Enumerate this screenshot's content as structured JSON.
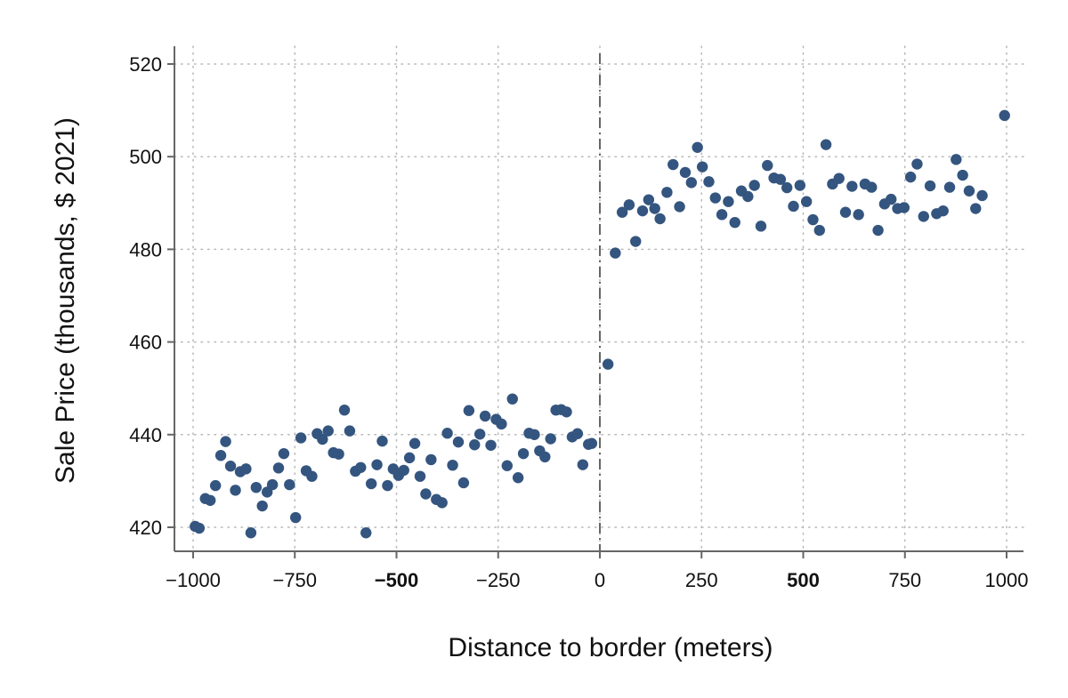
{
  "chart_data": {
    "type": "scatter",
    "title": "",
    "xlabel": "Distance to border (meters)",
    "ylabel": "Sale Price (thousands, $ 2021)",
    "xlim": [
      -1000,
      1000
    ],
    "ylim": [
      420,
      520
    ],
    "x_ticks": [
      -1000,
      -750,
      -500,
      -250,
      0,
      250,
      500,
      750,
      1000
    ],
    "x_tick_labels": [
      "−1000",
      "−750",
      "−500",
      "−250",
      "0",
      "250",
      "500",
      "750",
      "1000"
    ],
    "x_tick_bold": [
      "−500",
      "500"
    ],
    "y_ticks": [
      420,
      440,
      460,
      480,
      500,
      520
    ],
    "y_tick_labels": [
      "420",
      "440",
      "460",
      "480",
      "500",
      "520"
    ],
    "grid": true,
    "grid_style": "dotted",
    "cutoff_line": {
      "x": 0,
      "style": "dash-dot"
    },
    "colors": {
      "points": "#34557f",
      "cutoff": "#666666",
      "grid": "#b8b8b8",
      "axis": "#666666"
    },
    "series": [
      {
        "points": [
          [
            -995,
            420.2
          ],
          [
            -985,
            419.8
          ],
          [
            -970,
            426.2
          ],
          [
            -958,
            425.8
          ],
          [
            -945,
            429
          ],
          [
            -932,
            435.5
          ],
          [
            -920,
            438.5
          ],
          [
            -908,
            433.2
          ],
          [
            -896,
            428
          ],
          [
            -884,
            432
          ],
          [
            -870,
            432.6
          ],
          [
            -858,
            418.8
          ],
          [
            -845,
            428.6
          ],
          [
            -830,
            424.6
          ],
          [
            -818,
            427.6
          ],
          [
            -805,
            429.2
          ],
          [
            -790,
            432.8
          ],
          [
            -777,
            435.9
          ],
          [
            -763,
            429.2
          ],
          [
            -748,
            422.1
          ],
          [
            -735,
            439.3
          ],
          [
            -722,
            432.2
          ],
          [
            -708,
            431
          ],
          [
            -695,
            440.2
          ],
          [
            -682,
            439
          ],
          [
            -668,
            440.8
          ],
          [
            -655,
            436.1
          ],
          [
            -642,
            435.8
          ],
          [
            -628,
            445.3
          ],
          [
            -615,
            440.8
          ],
          [
            -601,
            432.1
          ],
          [
            -588,
            432.9
          ],
          [
            -575,
            418.8
          ],
          [
            -562,
            429.4
          ],
          [
            -548,
            433.5
          ],
          [
            -535,
            438.6
          ],
          [
            -522,
            429
          ],
          [
            -508,
            432.6
          ],
          [
            -495,
            431.2
          ],
          [
            -482,
            432.3
          ],
          [
            -468,
            435
          ],
          [
            -455,
            438.1
          ],
          [
            -442,
            431
          ],
          [
            -428,
            427.2
          ],
          [
            -415,
            434.6
          ],
          [
            -402,
            426
          ],
          [
            -388,
            425.3
          ],
          [
            -375,
            440.3
          ],
          [
            -362,
            433.4
          ],
          [
            -348,
            438.4
          ],
          [
            -335,
            429.6
          ],
          [
            -322,
            445.2
          ],
          [
            -308,
            437.8
          ],
          [
            -295,
            440.1
          ],
          [
            -282,
            444
          ],
          [
            -268,
            437.7
          ],
          [
            -255,
            443.3
          ],
          [
            -242,
            442.3
          ],
          [
            -228,
            433.3
          ],
          [
            -215,
            447.7
          ],
          [
            -201,
            430.7
          ],
          [
            -188,
            435.9
          ],
          [
            -174,
            440.3
          ],
          [
            -161,
            440
          ],
          [
            -148,
            436.5
          ],
          [
            -135,
            435.2
          ],
          [
            -121,
            439.1
          ],
          [
            -108,
            445.3
          ],
          [
            -95,
            445.4
          ],
          [
            -82,
            444.9
          ],
          [
            -68,
            439.5
          ],
          [
            -55,
            440.2
          ],
          [
            -42,
            433.5
          ],
          [
            -28,
            437.9
          ],
          [
            -20,
            438.1
          ],
          [
            20,
            455.2
          ],
          [
            38,
            479.2
          ],
          [
            55,
            488
          ],
          [
            72,
            489.6
          ],
          [
            88,
            481.7
          ],
          [
            105,
            488.3
          ],
          [
            120,
            490.7
          ],
          [
            135,
            488.8
          ],
          [
            148,
            486.6
          ],
          [
            165,
            492.3
          ],
          [
            180,
            498.3
          ],
          [
            196,
            489.2
          ],
          [
            210,
            496.6
          ],
          [
            225,
            494.4
          ],
          [
            240,
            502
          ],
          [
            252,
            497.8
          ],
          [
            268,
            494.6
          ],
          [
            284,
            491.1
          ],
          [
            300,
            487.5
          ],
          [
            316,
            490.3
          ],
          [
            332,
            485.8
          ],
          [
            348,
            492.6
          ],
          [
            364,
            491.4
          ],
          [
            380,
            493.8
          ],
          [
            396,
            485
          ],
          [
            412,
            498.1
          ],
          [
            428,
            495.4
          ],
          [
            444,
            495.1
          ],
          [
            460,
            493.3
          ],
          [
            476,
            489.3
          ],
          [
            492,
            493.8
          ],
          [
            508,
            490.3
          ],
          [
            524,
            486.4
          ],
          [
            540,
            484.1
          ],
          [
            556,
            502.6
          ],
          [
            572,
            494.1
          ],
          [
            588,
            495.3
          ],
          [
            604,
            488
          ],
          [
            620,
            493.6
          ],
          [
            636,
            487.5
          ],
          [
            652,
            494.1
          ],
          [
            668,
            493.4
          ],
          [
            684,
            484.1
          ],
          [
            700,
            489.8
          ],
          [
            716,
            490.8
          ],
          [
            732,
            488.8
          ],
          [
            748,
            489
          ],
          [
            764,
            495.6
          ],
          [
            780,
            498.4
          ],
          [
            796,
            487.1
          ],
          [
            812,
            493.7
          ],
          [
            828,
            487.7
          ],
          [
            844,
            488.3
          ],
          [
            860,
            493.4
          ],
          [
            876,
            499.4
          ],
          [
            892,
            496
          ],
          [
            908,
            492.6
          ],
          [
            924,
            488.8
          ],
          [
            940,
            491.6
          ],
          [
            995,
            508.9
          ]
        ]
      }
    ]
  }
}
